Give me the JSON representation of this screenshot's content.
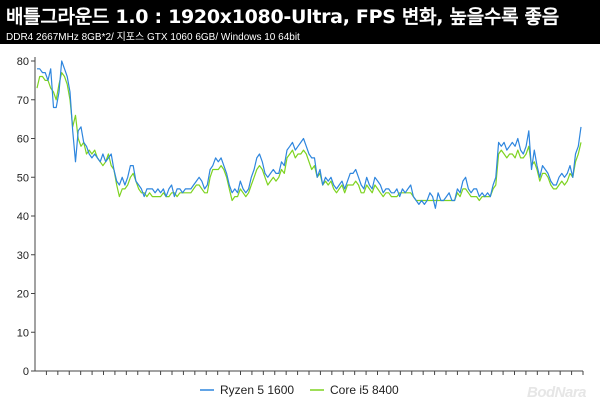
{
  "header": {
    "title": "배틀그라운드 1.0 : 1920x1080-Ultra, FPS 변화, 높을수록 좋음",
    "subtitle": "DDR4 2667MHz 8GB*2/ 지포스 GTX 1060 6GB/ Windows 10 64bit"
  },
  "watermark": "BodNara",
  "chart_data": {
    "type": "line",
    "title": "배틀그라운드 1.0 : 1920x1080-Ultra, FPS 변화, 높을수록 좋음",
    "subtitle": "DDR4 2667MHz 8GB*2/ 지포스 GTX 1060 6GB/ Windows 10 64bit",
    "xlabel": "",
    "ylabel": "",
    "ylim": [
      0,
      80
    ],
    "yticks": [
      0,
      10,
      20,
      30,
      40,
      50,
      60,
      70,
      80
    ],
    "xtick_count": 48,
    "grid": false,
    "legend": "bottom",
    "series": [
      {
        "name": "Ryzen 5 1600",
        "color": "#2e86de",
        "values": [
          78,
          78,
          77,
          77,
          75,
          78,
          68,
          68,
          72,
          80,
          78,
          76,
          72,
          62,
          54,
          62,
          63,
          59,
          58,
          56,
          55,
          56,
          55,
          54,
          56,
          54,
          55,
          56,
          52,
          49,
          48,
          50,
          48,
          50,
          53,
          53,
          49,
          48,
          47,
          45,
          47,
          47,
          47,
          46,
          47,
          46,
          47,
          45,
          47,
          48,
          45,
          47,
          47,
          46,
          47,
          47,
          47,
          48,
          49,
          50,
          49,
          47,
          48,
          52,
          53,
          55,
          54,
          55,
          53,
          51,
          48,
          46,
          47,
          46,
          49,
          47,
          46,
          47,
          50,
          52,
          55,
          56,
          54,
          51,
          50,
          51,
          52,
          51,
          51,
          54,
          53,
          57,
          58,
          59,
          57,
          58,
          59,
          60,
          58,
          56,
          55,
          55,
          50,
          52,
          48,
          50,
          49,
          50,
          48,
          47,
          48,
          49,
          47,
          49,
          51,
          51,
          52,
          50,
          48,
          47,
          50,
          48,
          47,
          50,
          49,
          48,
          46,
          47,
          47,
          46,
          46,
          47,
          45,
          47,
          46,
          47,
          48,
          45,
          44,
          43,
          44,
          43,
          44,
          46,
          45,
          42,
          46,
          44,
          44,
          45,
          46,
          44,
          44,
          47,
          46,
          49,
          50,
          47,
          46,
          47,
          47,
          45,
          46,
          45,
          46,
          45,
          48,
          50,
          59,
          58,
          59,
          57,
          58,
          59,
          58,
          60,
          57,
          56,
          58,
          62,
          52,
          57,
          53,
          50,
          53,
          52,
          51,
          49,
          48,
          48,
          50,
          51,
          50,
          51,
          53,
          50,
          56,
          58,
          63
        ]
      },
      {
        "name": "Core i5 8400",
        "color": "#7ed321",
        "values": [
          73,
          76,
          76,
          75,
          75,
          73,
          72,
          70,
          74,
          77,
          76,
          74,
          70,
          63,
          66,
          60,
          58,
          59,
          56,
          57,
          56,
          57,
          55,
          54,
          53,
          54,
          56,
          53,
          52,
          48,
          45,
          47,
          47,
          48,
          50,
          51,
          49,
          47,
          46,
          46,
          45,
          46,
          45,
          45,
          45,
          45,
          46,
          45,
          45,
          46,
          46,
          45,
          46,
          46,
          46,
          46,
          46,
          47,
          48,
          48,
          47,
          46,
          46,
          50,
          52,
          52,
          52,
          53,
          52,
          50,
          47,
          44,
          45,
          45,
          47,
          46,
          45,
          46,
          48,
          50,
          52,
          53,
          52,
          50,
          48,
          49,
          50,
          49,
          50,
          52,
          51,
          55,
          56,
          57,
          55,
          56,
          56,
          57,
          56,
          54,
          52,
          53,
          50,
          51,
          48,
          49,
          48,
          49,
          47,
          46,
          47,
          48,
          46,
          48,
          48,
          48,
          49,
          48,
          46,
          46,
          48,
          47,
          46,
          48,
          47,
          46,
          45,
          46,
          46,
          45,
          45,
          45,
          46,
          46,
          46,
          46,
          46,
          45,
          44,
          44,
          44,
          44,
          44,
          44,
          44,
          44,
          44,
          44,
          44,
          44,
          44,
          44,
          44,
          46,
          45,
          47,
          47,
          46,
          45,
          45,
          45,
          44,
          45,
          45,
          45,
          45,
          47,
          48,
          56,
          57,
          56,
          55,
          56,
          56,
          55,
          57,
          55,
          55,
          56,
          58,
          53,
          54,
          52,
          49,
          51,
          51,
          50,
          48,
          47,
          47,
          48,
          49,
          48,
          49,
          51,
          50,
          54,
          56,
          59
        ]
      }
    ]
  }
}
